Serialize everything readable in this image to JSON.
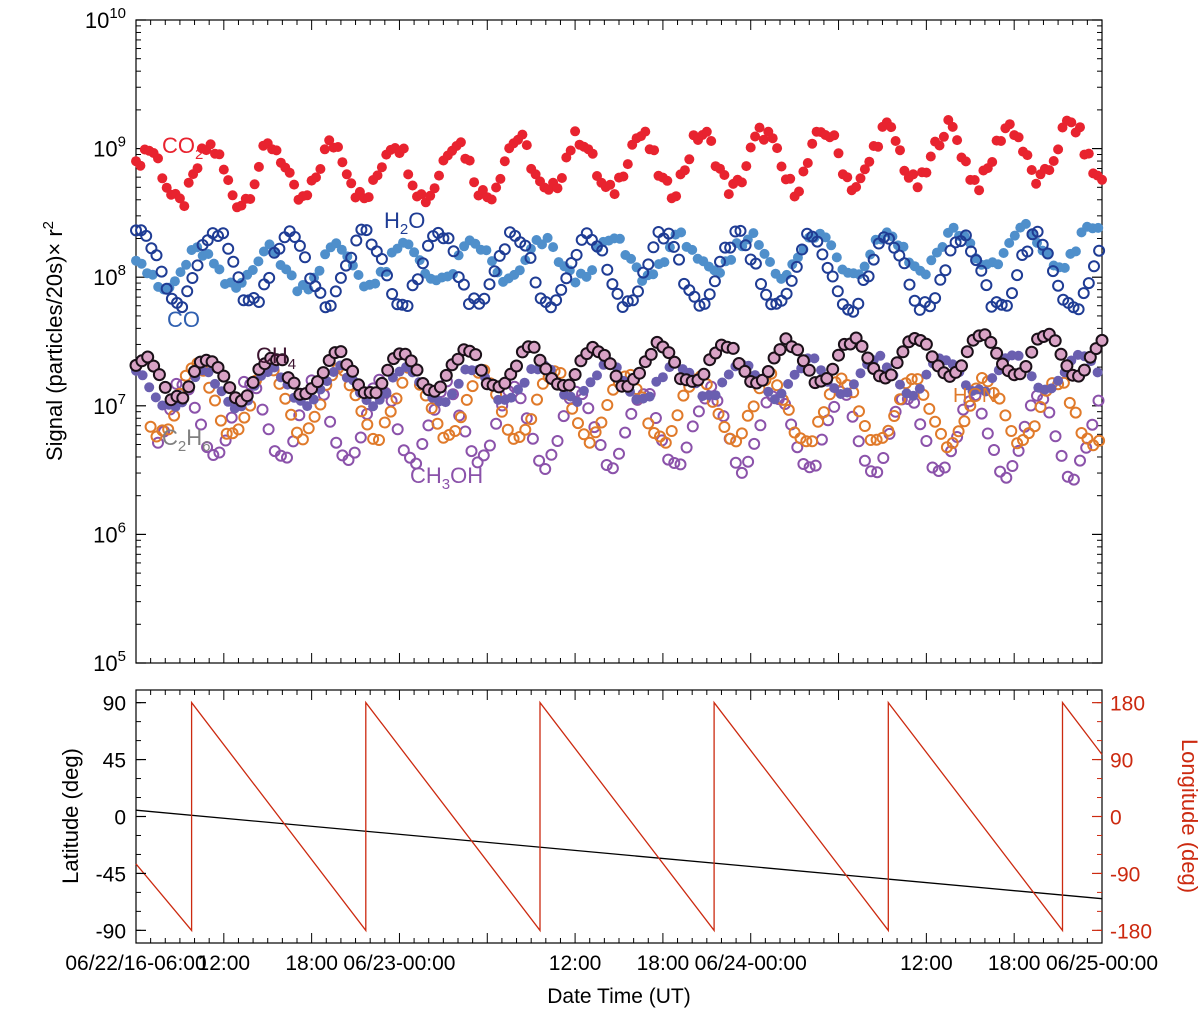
{
  "chart_data": [
    {
      "type": "scatter",
      "title": "",
      "ylabel": "Signal (particles/20s)× r²",
      "ylabel_parts": {
        "base": "Signal (particles/20s)× r",
        "sup": "2"
      },
      "yscale": "log",
      "ylim": [
        100000,
        10000000000
      ],
      "yticks": [
        {
          "base": "10",
          "exp": "5",
          "value": 100000
        },
        {
          "base": "10",
          "exp": "6",
          "value": 1000000
        },
        {
          "base": "10",
          "exp": "7",
          "value": 10000000
        },
        {
          "base": "10",
          "exp": "8",
          "value": 100000000
        },
        {
          "base": "10",
          "exp": "9",
          "value": 1000000000
        },
        {
          "base": "10",
          "exp": "10",
          "value": 10000000000
        }
      ],
      "xlim_hours": [
        0,
        66
      ],
      "x_unit": "hours since 06/22/16-06:00 UT",
      "series": [
        {
          "name": "CO2",
          "label": "CO",
          "label_sub": "2",
          "color": "#e8232f",
          "marker": "filled",
          "base": 600000000,
          "trend": 0.2,
          "amp": 0.22,
          "period": 4.2,
          "phase": 0.3,
          "noise": 0.07,
          "start": 0.0,
          "end": 66,
          "step": 0.3
        },
        {
          "name": "H2O",
          "label": "H",
          "label_sub": "2",
          "label_tail": "O",
          "color": "#1f3c94",
          "marker": "open",
          "base": 120000000,
          "trend": -0.05,
          "amp": 0.28,
          "period": 5.1,
          "phase": 1.2,
          "noise": 0.05,
          "start": 0.0,
          "end": 66,
          "step": 0.35
        },
        {
          "name": "CO",
          "label": "CO",
          "color": "#4f8fcb",
          "marker": "filled",
          "base": 110000000,
          "trend": 0.2,
          "amp": 0.15,
          "period": 4.7,
          "phase": 2.1,
          "noise": 0.05,
          "start": 0.0,
          "end": 66,
          "step": 0.38
        },
        {
          "name": "CH4",
          "label": "CH",
          "label_sub": "4",
          "color": "#1a1018",
          "fill": "#d9a3c6",
          "marker": "filled-edge",
          "base": 16000000,
          "trend": 0.2,
          "amp": 0.16,
          "period": 4.4,
          "phase": 0.8,
          "noise": 0.03,
          "start": 0.0,
          "end": 66,
          "step": 0.4
        },
        {
          "name": "C2H6",
          "label": "C",
          "label_sub": "2",
          "label_tail": "H",
          "label_sub2": "6",
          "color": "#6a5fb0",
          "marker": "filled",
          "base": 13000000,
          "trend": 0.15,
          "amp": 0.14,
          "period": 4.6,
          "phase": 1.5,
          "noise": 0.03,
          "start": 0.0,
          "end": 66,
          "step": 0.45
        },
        {
          "name": "HCN",
          "label": "HCN",
          "color": "#e07a2a",
          "marker": "open",
          "base": 11000000,
          "trend": -0.1,
          "amp": 0.26,
          "period": 4.9,
          "phase": 2.6,
          "noise": 0.04,
          "start": 1.0,
          "end": 66,
          "step": 0.4
        },
        {
          "name": "CH3OH",
          "label": "CH",
          "label_sub": "3",
          "label_tail": "OH",
          "color": "#8b52aa",
          "marker": "open",
          "base": 8000000,
          "trend": -0.15,
          "amp": 0.3,
          "period": 4.5,
          "phase": 3.4,
          "noise": 0.04,
          "start": 1.5,
          "end": 66,
          "step": 0.42
        }
      ]
    },
    {
      "type": "line",
      "title": "",
      "xlabel": "Date Time (UT)",
      "ylabel_left": "Latitude (deg)",
      "ylabel_right": "Longitude (deg)",
      "ylim_left": [
        -100,
        100
      ],
      "ylim_right": [
        -200,
        200
      ],
      "yticks_left": [
        "90",
        "45",
        "0",
        "-45",
        "-90"
      ],
      "yticks_left_values": [
        90,
        45,
        0,
        -45,
        -90
      ],
      "yticks_right": [
        "180",
        "90",
        "0",
        "-90",
        "-180"
      ],
      "yticks_right_values": [
        180,
        90,
        0,
        -90,
        -180
      ],
      "xlim_hours": [
        0,
        66
      ],
      "xticks": [
        "06/22/16-06:00",
        "12:00",
        "18:00",
        "06/23-00:00",
        "12:00",
        "18:00",
        "06/24-00:00",
        "12:00",
        "18:00",
        "06/25-00:00"
      ],
      "xticks_hours": [
        0,
        6,
        12,
        18,
        30,
        36,
        42,
        54,
        60,
        66
      ],
      "series": [
        {
          "name": "Latitude",
          "axis": "left",
          "color": "#000000",
          "x": [
            0,
            66
          ],
          "y": [
            5,
            -65
          ]
        },
        {
          "name": "Longitude",
          "axis": "right",
          "color": "#cc2a10",
          "x": [
            0,
            3.8,
            3.8,
            15.7,
            15.7,
            27.6,
            27.6,
            39.5,
            39.5,
            51.4,
            51.4,
            63.3,
            63.3,
            66
          ],
          "y": [
            -75,
            -180,
            180,
            -180,
            180,
            -180,
            180,
            -180,
            180,
            -180,
            180,
            -180,
            180,
            98
          ]
        }
      ]
    }
  ],
  "colors": {
    "axis": "#000000",
    "longitude": "#cc2a10"
  }
}
